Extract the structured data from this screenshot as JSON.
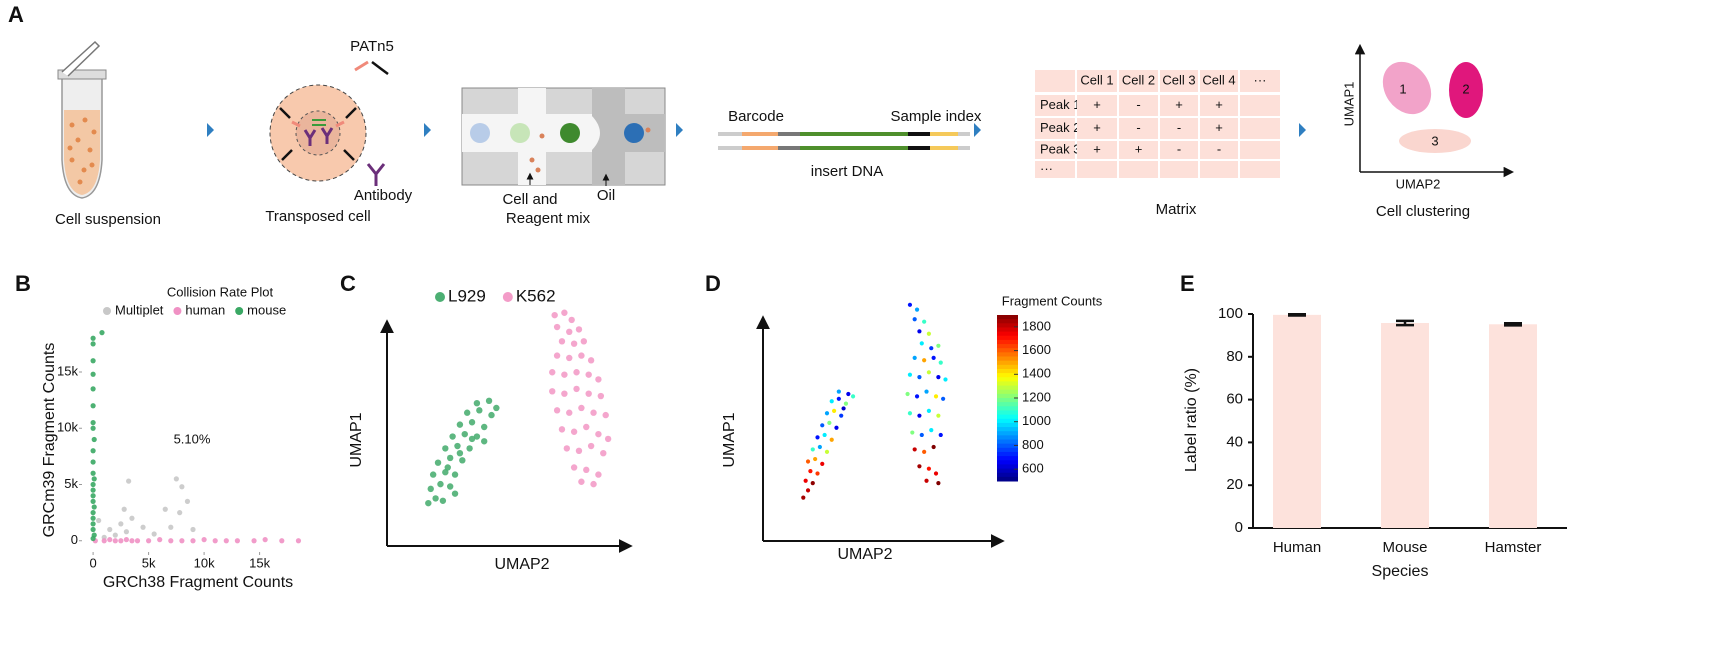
{
  "diagram": {
    "panel_label": "A",
    "steps": {
      "cell_suspension": "Cell suspension",
      "transposed_cell": "Transposed cell",
      "patn5": "PATn5",
      "antibody": "Antibody",
      "cell_reagent_1": "Cell and",
      "cell_reagent_2": "Reagent mix",
      "oil": "Oil",
      "barcode": "Barcode",
      "sample_index": "Sample index",
      "insert_dna": "insert DNA",
      "matrix": "Matrix",
      "cell_clustering": "Cell clustering",
      "umap1": "UMAP1",
      "umap2": "UMAP2",
      "cluster_labels": [
        "1",
        "2",
        "3"
      ]
    },
    "matrix_table": {
      "header": [
        "Cell 1",
        "Cell 2",
        "Cell 3",
        "Cell 4",
        "···"
      ],
      "rows": [
        {
          "label": "Peak 1",
          "cells": [
            "+",
            "-",
            "+",
            "+"
          ]
        },
        {
          "label": "Peak 2",
          "cells": [
            "+",
            "-",
            "-",
            "+"
          ]
        },
        {
          "label": "Peak 3",
          "cells": [
            "+",
            "+",
            "-",
            "-"
          ]
        },
        {
          "label": "···",
          "cells": []
        }
      ]
    }
  },
  "chart_data": [
    {
      "type": "scatter",
      "panel_label": "B",
      "title": "Collision Rate Plot",
      "xlabel": "GRCh38 Fragment Counts",
      "ylabel": "GRCm39 Fragment Counts",
      "annotation": "5.10%",
      "xlim": [
        -1000,
        19000
      ],
      "ylim": [
        -1000,
        19000
      ],
      "xticks": [
        0,
        {
          "value": 5000,
          "label": "5k"
        },
        {
          "value": 10000,
          "label": "10k"
        },
        {
          "value": 15000,
          "label": "15k"
        }
      ],
      "yticks": [
        0,
        {
          "value": 5000,
          "label": "5k"
        },
        {
          "value": 10000,
          "label": "10k"
        },
        {
          "value": 15000,
          "label": "15k"
        }
      ],
      "series": [
        {
          "name": "Multiplet",
          "color": "#c8c8c8",
          "x": [
            1500,
            2000,
            2500,
            3000,
            3500,
            1000,
            4500,
            5500,
            6500,
            7000,
            7500,
            8000,
            8500,
            7800,
            3200,
            9000,
            500,
            2800
          ],
          "values": [
            1000,
            500,
            1500,
            800,
            2000,
            300,
            1200,
            600,
            2800,
            1200,
            5500,
            4800,
            3500,
            2500,
            5300,
            1000,
            1800,
            2800
          ]
        },
        {
          "name": "human",
          "color": "#f091c4",
          "x": [
            200,
            1000,
            1500,
            2000,
            2500,
            3000,
            3500,
            4000,
            5000,
            6000,
            7000,
            8000,
            9000,
            10000,
            11000,
            12000,
            13000,
            14500,
            15500,
            17000,
            18500
          ],
          "values": [
            0,
            0,
            100,
            0,
            0,
            100,
            0,
            0,
            0,
            100,
            0,
            0,
            0,
            100,
            0,
            0,
            0,
            0,
            100,
            0,
            0
          ]
        },
        {
          "name": "mouse",
          "color": "#3aa864",
          "x": [
            0,
            0,
            0,
            0,
            0,
            0,
            0,
            0,
            100,
            0,
            0,
            0,
            100,
            0,
            0,
            0,
            0,
            100,
            0,
            0,
            0,
            0,
            100,
            0,
            800
          ],
          "values": [
            18000,
            17500,
            16000,
            14800,
            13500,
            12000,
            10500,
            10000,
            9000,
            8000,
            7000,
            6000,
            5500,
            5000,
            4500,
            4000,
            3500,
            3000,
            2500,
            2000,
            1500,
            1000,
            500,
            200,
            18500
          ]
        }
      ]
    },
    {
      "type": "scatter",
      "panel_label": "C",
      "xlabel": "UMAP2",
      "ylabel": "UMAP1",
      "xlim": [
        0,
        100
      ],
      "ylim": [
        0,
        100
      ],
      "series": [
        {
          "name": "L929",
          "color": "#4caf73",
          "x": [
            17,
            20,
            23,
            18,
            22,
            26,
            19,
            24,
            28,
            21,
            26,
            31,
            24,
            29,
            34,
            27,
            32,
            37,
            30,
            35,
            40,
            33,
            38,
            43,
            37,
            42,
            45,
            25,
            30,
            35,
            28,
            40
          ],
          "values": [
            18,
            20,
            19,
            24,
            26,
            25,
            30,
            31,
            30,
            35,
            37,
            36,
            41,
            42,
            41,
            46,
            47,
            46,
            51,
            52,
            50,
            56,
            57,
            55,
            60,
            61,
            58,
            33,
            39,
            45,
            22,
            44
          ]
        },
        {
          "name": "K562",
          "color": "#f39cc8",
          "x": [
            69,
            73,
            76,
            70,
            75,
            79,
            72,
            77,
            81,
            70,
            75,
            80,
            84,
            68,
            73,
            78,
            83,
            87,
            68,
            73,
            78,
            83,
            88,
            70,
            75,
            80,
            85,
            90,
            72,
            77,
            82,
            87,
            91,
            74,
            79,
            84,
            89,
            77,
            82,
            87,
            80,
            85
          ],
          "values": [
            97,
            98,
            95,
            92,
            90,
            91,
            86,
            85,
            86,
            80,
            79,
            80,
            78,
            73,
            72,
            73,
            72,
            70,
            65,
            64,
            66,
            64,
            63,
            57,
            56,
            58,
            56,
            55,
            49,
            48,
            50,
            47,
            45,
            41,
            40,
            42,
            39,
            33,
            32,
            30,
            27,
            26
          ]
        }
      ]
    },
    {
      "type": "scatter",
      "panel_label": "D",
      "xlabel": "UMAP2",
      "ylabel": "UMAP1",
      "xlim": [
        0,
        100
      ],
      "ylim": [
        0,
        100
      ],
      "colorbar": {
        "title": "Fragment Counts",
        "clim": [
          500,
          1900
        ],
        "ticks": [
          600,
          800,
          1000,
          1200,
          1400,
          1600,
          1800
        ]
      },
      "series": [
        {
          "x": [
            17,
            19,
            18,
            21,
            20,
            23,
            19,
            22,
            25,
            21,
            24,
            27,
            23,
            26,
            29,
            25,
            28,
            31,
            27,
            30,
            33,
            29,
            32,
            35,
            32,
            36,
            38,
            34
          ],
          "values": [
            18,
            21,
            25,
            24,
            29,
            28,
            33,
            34,
            32,
            38,
            39,
            37,
            43,
            44,
            42,
            48,
            49,
            47,
            53,
            54,
            52,
            58,
            59,
            57,
            62,
            61,
            60,
            55
          ],
          "counts": [
            1850,
            1800,
            1750,
            1880,
            1700,
            1650,
            1600,
            1500,
            1750,
            1100,
            900,
            1300,
            700,
            1000,
            1500,
            800,
            1200,
            650,
            900,
            1400,
            750,
            1000,
            700,
            1200,
            900,
            650,
            1100,
            600
          ]
        },
        {
          "x": [
            62,
            65,
            64,
            68,
            66,
            70,
            67,
            71,
            74,
            64,
            68,
            72,
            75,
            62,
            66,
            70,
            74,
            77,
            61,
            65,
            69,
            73,
            76,
            62,
            66,
            70,
            74,
            63,
            67,
            71,
            75,
            64,
            68,
            72,
            66,
            70,
            73,
            69,
            74
          ],
          "values": [
            98,
            96,
            92,
            91,
            87,
            86,
            82,
            80,
            81,
            76,
            75,
            76,
            74,
            69,
            68,
            70,
            68,
            67,
            61,
            60,
            62,
            60,
            59,
            53,
            52,
            54,
            52,
            45,
            44,
            46,
            44,
            38,
            37,
            39,
            31,
            30,
            28,
            25,
            24
          ],
          "counts": [
            700,
            900,
            800,
            1100,
            650,
            1300,
            1000,
            750,
            1200,
            900,
            1500,
            700,
            1100,
            1000,
            800,
            1300,
            650,
            1000,
            1200,
            700,
            900,
            1400,
            800,
            1100,
            650,
            1000,
            1300,
            1200,
            800,
            1000,
            700,
            1800,
            1600,
            1900,
            1850,
            1700,
            1750,
            1800,
            1900
          ]
        }
      ]
    },
    {
      "type": "bar",
      "panel_label": "E",
      "categories": [
        "Human",
        "Mouse",
        "Hamster"
      ],
      "values": [
        99.6,
        95.8,
        95.2
      ],
      "errors": [
        0.3,
        1.0,
        0.5
      ],
      "color": "#fde2dc",
      "ylim": [
        0,
        100
      ],
      "yticks": [
        0,
        20,
        40,
        60,
        80,
        100
      ],
      "xlabel": "Species",
      "ylabel": "Label ratio (%)"
    }
  ]
}
